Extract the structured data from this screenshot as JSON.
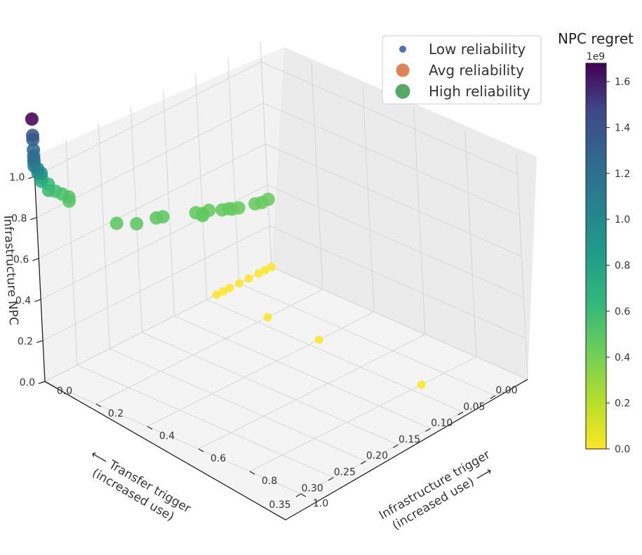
{
  "chart_data": {
    "type": "scatter",
    "projection": "3d",
    "x_axis": {
      "label": "Infrastructure trigger\n(increased use) ⟶",
      "ticks": [
        "0.0",
        "0.2",
        "0.4",
        "0.6",
        "0.8",
        "1.0"
      ],
      "range": [
        0,
        1
      ]
    },
    "y_axis": {
      "label": "⟵ Transfer trigger\n(increased use)",
      "ticks": [
        "0.00",
        "0.05",
        "0.10",
        "0.15",
        "0.20",
        "0.25",
        "0.30",
        "0.35"
      ],
      "range": [
        0,
        0.35
      ]
    },
    "z_axis": {
      "label": "Infrastructure NPC",
      "ticks": [
        "0.0",
        "0.2",
        "0.4",
        "0.6",
        "0.8",
        "1.0"
      ],
      "range": [
        0,
        1.1
      ]
    },
    "colorbar": {
      "title": "NPC regret",
      "exponent_label": "1e9",
      "ticks": [
        "0.0",
        "0.2",
        "0.4",
        "0.6",
        "0.8",
        "1.0",
        "1.2",
        "1.4",
        "1.6"
      ],
      "range": [
        0,
        1.68
      ],
      "colormap": "viridis_r"
    },
    "legend": {
      "position": "top-right",
      "entries": [
        {
          "name": "Low reliability",
          "color": "#4c72b0",
          "size": "small"
        },
        {
          "name": "Avg reliability",
          "color": "#dd8452",
          "size": "medium"
        },
        {
          "name": "High reliability",
          "color": "#55a868",
          "size": "large"
        }
      ]
    },
    "grid": true,
    "series": [
      {
        "name": "Low reliability",
        "points": [
          {
            "x": 0.0,
            "y": 0.0,
            "z": 0.0,
            "c": 0.0
          },
          {
            "x": 0.0,
            "y": 0.01,
            "z": 0.0,
            "c": 0.0
          },
          {
            "x": 0.0,
            "y": 0.02,
            "z": 0.0,
            "c": 0.0
          },
          {
            "x": 0.0,
            "y": 0.035,
            "z": 0.0,
            "c": 0.0
          },
          {
            "x": 0.0,
            "y": 0.05,
            "z": 0.0,
            "c": 0.0
          },
          {
            "x": 0.0,
            "y": 0.065,
            "z": 0.0,
            "c": 0.0
          },
          {
            "x": 0.0,
            "y": 0.075,
            "z": 0.0,
            "c": 0.0
          },
          {
            "x": 0.0,
            "y": 0.085,
            "z": 0.0,
            "c": 0.0
          },
          {
            "x": 0.2,
            "y": 0.085,
            "z": 0.0,
            "c": 0.0
          },
          {
            "x": 0.4,
            "y": 0.085,
            "z": 0.0,
            "c": 0.0
          },
          {
            "x": 0.8,
            "y": 0.085,
            "z": 0.0,
            "c": 0.0
          }
        ]
      },
      {
        "name": "High reliability",
        "points": [
          {
            "x": 0.0,
            "y": 0.0,
            "z": 0.33,
            "c": 0.45
          },
          {
            "x": 0.0,
            "y": 0.01,
            "z": 0.33,
            "c": 0.45
          },
          {
            "x": 0.0,
            "y": 0.02,
            "z": 0.34,
            "c": 0.45
          },
          {
            "x": 0.0,
            "y": 0.045,
            "z": 0.36,
            "c": 0.45
          },
          {
            "x": 0.0,
            "y": 0.055,
            "z": 0.37,
            "c": 0.45
          },
          {
            "x": 0.0,
            "y": 0.06,
            "z": 0.38,
            "c": 0.46
          },
          {
            "x": 0.0,
            "y": 0.07,
            "z": 0.39,
            "c": 0.46
          },
          {
            "x": 0.0,
            "y": 0.09,
            "z": 0.42,
            "c": 0.46
          },
          {
            "x": 0.0,
            "y": 0.1,
            "z": 0.42,
            "c": 0.47
          },
          {
            "x": 0.0,
            "y": 0.1,
            "z": 0.41,
            "c": 0.47
          },
          {
            "x": 0.0,
            "y": 0.11,
            "z": 0.44,
            "c": 0.47
          },
          {
            "x": 0.0,
            "y": 0.16,
            "z": 0.5,
            "c": 0.48
          },
          {
            "x": 0.0,
            "y": 0.17,
            "z": 0.51,
            "c": 0.48
          },
          {
            "x": 0.0,
            "y": 0.2,
            "z": 0.53,
            "c": 0.48
          },
          {
            "x": 0.0,
            "y": 0.23,
            "z": 0.58,
            "c": 0.48
          },
          {
            "x": 0.0,
            "y": 0.3,
            "z": 0.8,
            "c": 0.5
          },
          {
            "x": 0.0,
            "y": 0.3,
            "z": 0.82,
            "c": 0.52
          },
          {
            "x": 0.0,
            "y": 0.31,
            "z": 0.85,
            "c": 0.54
          },
          {
            "x": 0.0,
            "y": 0.32,
            "z": 0.88,
            "c": 0.56
          },
          {
            "x": 0.0,
            "y": 0.33,
            "z": 0.9,
            "c": 0.6
          },
          {
            "x": 0.0,
            "y": 0.33,
            "z": 0.93,
            "c": 0.62
          },
          {
            "x": 0.0,
            "y": 0.34,
            "z": 0.96,
            "c": 0.7
          },
          {
            "x": 0.0,
            "y": 0.34,
            "z": 0.98,
            "c": 0.75
          },
          {
            "x": 0.0,
            "y": 0.34,
            "z": 1.0,
            "c": 0.85
          },
          {
            "x": 0.0,
            "y": 0.345,
            "z": 1.01,
            "c": 0.95
          },
          {
            "x": 0.0,
            "y": 0.345,
            "z": 1.03,
            "c": 1.0
          },
          {
            "x": 0.0,
            "y": 0.35,
            "z": 1.05,
            "c": 1.05
          },
          {
            "x": 0.0,
            "y": 0.35,
            "z": 1.07,
            "c": 1.1
          },
          {
            "x": 0.0,
            "y": 0.35,
            "z": 1.08,
            "c": 1.15
          },
          {
            "x": 0.0,
            "y": 0.35,
            "z": 1.1,
            "c": 1.2
          },
          {
            "x": 0.0,
            "y": 0.35,
            "z": 1.13,
            "c": 1.25
          },
          {
            "x": 0.0,
            "y": 0.35,
            "z": 1.18,
            "c": 1.32
          },
          {
            "x": 0.0,
            "y": 0.35,
            "z": 1.2,
            "c": 1.38
          },
          {
            "x": 0.0,
            "y": 0.35,
            "z": 1.28,
            "c": 1.68
          }
        ]
      }
    ]
  }
}
